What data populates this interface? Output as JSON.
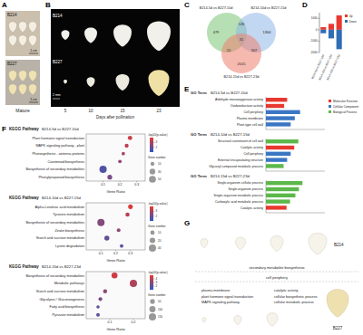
{
  "panel_labels": [
    "A",
    "B",
    "C",
    "D",
    "E",
    "F",
    "G"
  ],
  "panel_A": {
    "lines": [
      "B214",
      "B227"
    ],
    "scales": [
      "1 cm",
      "1 cm"
    ],
    "caption": "Mature"
  },
  "panel_B": {
    "lines": [
      "B214",
      "B227"
    ],
    "scale": "2 mm",
    "days": [
      5,
      10,
      15,
      23
    ],
    "xlabel": "Days after pollination"
  },
  "panel_C": {
    "sets": [
      "B214-5d vs B227-10d",
      "B214-10d vs B227-15d",
      "B214-15d vs B227-23d"
    ],
    "counts": [
      479,
      126,
      1364,
      31,
      15,
      307,
      2015
    ]
  },
  "chart_data": [
    {
      "type": "bar",
      "categories": [
        "B214-5d vs B227-10d",
        "B214-10d vs B227-15d",
        "B214-15d vs B227-23d"
      ],
      "series": [
        {
          "name": "Up",
          "color": "#e8382f",
          "values": [
            230,
            520,
            1260
          ]
        },
        {
          "name": "Down",
          "color": "#2f6db5",
          "values": [
            -310,
            -760,
            -1710
          ]
        }
      ],
      "ylim": [
        -2000,
        1500
      ],
      "yticks": [
        -2000,
        -1000,
        0,
        1000
      ],
      "stacked": true,
      "legend": "right"
    },
    {
      "type": "bar",
      "orientation": "horizontal",
      "title": "GO Term",
      "subtitle": "B214-5d vs B227-10d",
      "categories": [
        "Aldehyde monooxygenase activity",
        "Oxidoreductase activity",
        "Cell periphery",
        "Plasma membrane",
        "Plant-type cell wall"
      ],
      "series": [
        {
          "name": "Molecular Function",
          "color": "#e8382f",
          "values": [
            3.6,
            3.1,
            null,
            null,
            null
          ]
        },
        {
          "name": "Cellular Component",
          "color": "#3b76c4",
          "values": [
            null,
            null,
            5.8,
            4.9,
            4.2
          ]
        },
        {
          "name": "Biological Process",
          "color": "#5cb84a",
          "values": [
            null,
            null,
            null,
            null,
            null
          ]
        }
      ],
      "xlim": [
        0,
        10
      ],
      "stacked": true,
      "legend": "right",
      "tick_labels": "y"
    },
    {
      "type": "bar",
      "orientation": "horizontal",
      "title": "GO Term",
      "subtitle": "B214-10d vs B227-15d",
      "categories": [
        "Structural constituent of cell wall",
        "Catalytic activity",
        "Cell periphery",
        "External encapsulating structure",
        "Glycosyl compound metabolic process"
      ],
      "values": [
        5.5,
        4.8,
        4.2,
        3.6,
        3.0
      ],
      "colors": [
        "#5cb84a",
        "#e8382f",
        "#3b76c4",
        "#3b76c4",
        "#5cb84a"
      ],
      "xlim": [
        0,
        10
      ],
      "tick_labels": "y"
    },
    {
      "type": "bar",
      "orientation": "horizontal",
      "title": "GO Term",
      "subtitle": "B214-15d vs B227-23d",
      "categories": [
        "Single-organism cellular process",
        "Single-organism process",
        "Single-organism metabolic process",
        "Carboxylic acid metabolic process",
        "Catalytic activity"
      ],
      "values": [
        6.2,
        5.6,
        5.0,
        4.1,
        3.5
      ],
      "colors": [
        "#5cb84a",
        "#5cb84a",
        "#5cb84a",
        "#5cb84a",
        "#e8382f"
      ],
      "xlim": [
        0,
        10
      ],
      "tick_labels": "y"
    },
    {
      "type": "scatter",
      "title": "KEGG Pathway",
      "subtitle": "B214-5d vs B227-10d",
      "categories": [
        "Plant hormone signal transduction",
        "MAPK signaling pathway - plant",
        "Photosynthesis - antenna proteins",
        "Carotenoid biosynthesis",
        "Biosynthesis of secondary metabolites",
        "Phenylpropanoid biosynthesis"
      ],
      "values": [
        0.26,
        0.24,
        0.22,
        0.2,
        0.1,
        0.14
      ],
      "sizes": [
        14,
        10,
        6,
        7,
        55,
        18
      ],
      "color_values": [
        3.6,
        3.3,
        2.9,
        2.7,
        1.6,
        2.2
      ],
      "xlabel": "Gene Ratio",
      "xlim": [
        0,
        0.35
      ],
      "xticks": [
        0.1,
        0.2,
        0.3
      ],
      "size_title": "Gene number",
      "size_ticks": [
        10,
        30,
        50
      ],
      "color_title": "-log10(p-value)",
      "colorbar_range": [
        1,
        4
      ],
      "colorbar_ticks": [
        2,
        3
      ]
    },
    {
      "type": "scatter",
      "title": "KEGG Pathway",
      "subtitle": "B214-10d vs B227-15d",
      "categories": [
        "Alpha-Linolenic acid metabolism",
        "Tyrosine metabolism",
        "Biosynthesis of secondary metabolites",
        "Zeatin biosynthesis",
        "Starch and sucrose metabolism",
        "Lysine degradation"
      ],
      "values": [
        0.3,
        0.28,
        0.1,
        0.22,
        0.14,
        0.24
      ],
      "sizes": [
        12,
        9,
        40,
        6,
        15,
        5
      ],
      "color_values": [
        3.8,
        3.2,
        2.4,
        2.6,
        1.9,
        1.7
      ],
      "xlabel": "Gene Ratio",
      "xlim": [
        0,
        0.4
      ],
      "xticks": [
        0.1,
        0.2,
        0.3
      ],
      "size_title": "Gene number",
      "size_ticks": [
        10,
        20,
        40
      ],
      "color_title": "-log10(p-value)",
      "colorbar_range": [
        1,
        4
      ],
      "colorbar_ticks": [
        2,
        3
      ]
    },
    {
      "type": "scatter",
      "title": "KEGG Pathway",
      "subtitle": "B214-15d vs B227-23d",
      "categories": [
        "Biosynthesis of secondary metabolites",
        "Metabolic pathways",
        "Starch and sucrose metabolism",
        "Glycolysis / Gluconeogenesis",
        "Fatty acid biosynthesis",
        "Pyruvate metabolism"
      ],
      "values": [
        0.12,
        0.2,
        0.08,
        0.06,
        0.05,
        0.05
      ],
      "sizes": [
        90,
        150,
        30,
        25,
        15,
        20
      ],
      "color_values": [
        4.5,
        3.8,
        3.0,
        2.6,
        2.2,
        2.0
      ],
      "xlabel": "Gene Ratio",
      "xlim": [
        0,
        0.25
      ],
      "xticks": [
        0.1,
        0.2
      ],
      "size_title": "Gene number",
      "size_ticks": [
        50,
        100,
        150
      ],
      "color_title": "-log10(p-value)",
      "colorbar_range": [
        1,
        5
      ],
      "colorbar_ticks": [
        2,
        3,
        4
      ]
    }
  ],
  "panel_G": {
    "top": "B214",
    "bottom": "B227",
    "shared_terms": [
      "secondary metabolite biosynthesis",
      "cell periphery"
    ],
    "left_terms": [
      "plasma membrane",
      "plant hormone signal transduction",
      "MAPK signaling pathway"
    ],
    "right_terms": [
      "catalytic activity",
      "cellular biosynthetic process",
      "cellular metabolic process"
    ]
  }
}
